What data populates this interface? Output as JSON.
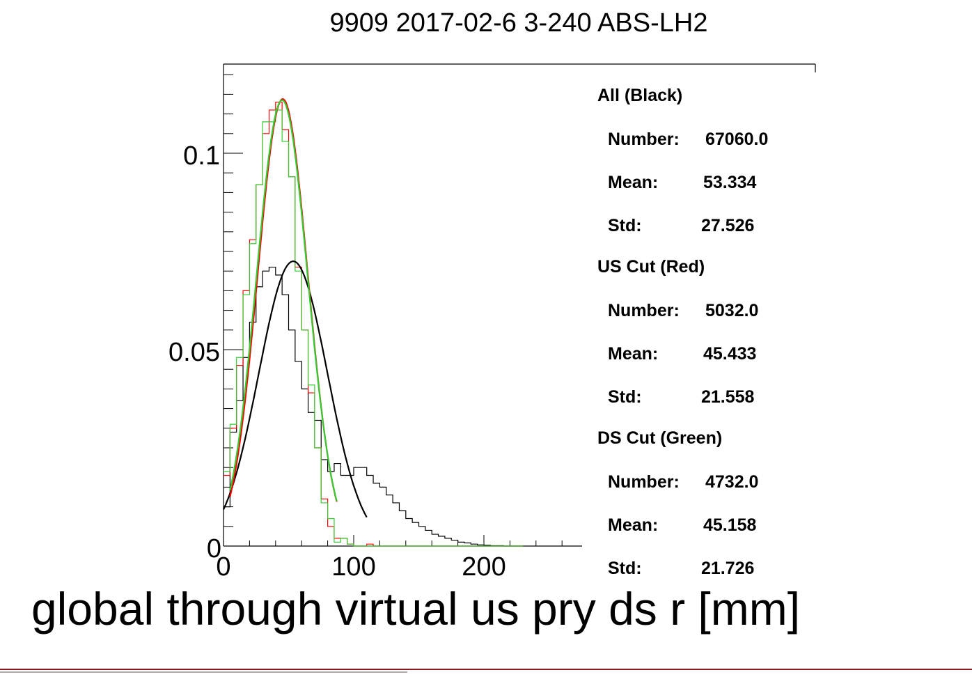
{
  "chart_data": {
    "type": "histogram",
    "title": "9909 2017-02-6 3-240 ABS-LH2",
    "xlabel": "global through virtual us pry ds r [mm]",
    "ylabel": "",
    "xlim": [
      0,
      284
    ],
    "ylim": [
      0,
      0.1225
    ],
    "x_ticks": [
      {
        "value": 0,
        "label": "0"
      },
      {
        "value": 100,
        "label": "100"
      },
      {
        "value": 200,
        "label": "200"
      }
    ],
    "y_ticks": [
      {
        "value": 0,
        "label": "0"
      },
      {
        "value": 0.05,
        "label": "0.05"
      },
      {
        "value": 0.1,
        "label": "0.1"
      }
    ],
    "grid": false,
    "legend_position": "right",
    "bin_width": 5,
    "series": [
      {
        "name": "All (Black)",
        "color": "#000000",
        "bin_edges_start": 0,
        "values": [
          0.01,
          0.029,
          0.037,
          0.048,
          0.057,
          0.066,
          0.07,
          0.071,
          0.069,
          0.064,
          0.055,
          0.047,
          0.04,
          0.034,
          0.032,
          0.022,
          0.019,
          0.021,
          0.018,
          0.018,
          0.02,
          0.02,
          0.018,
          0.016,
          0.015,
          0.013,
          0.011,
          0.009,
          0.007,
          0.006,
          0.005,
          0.004,
          0.003,
          0.0025,
          0.002,
          0.0015,
          0.001,
          0.0008,
          0.0005,
          0.0003,
          0.0002,
          0.0001,
          0.0001,
          0.0,
          0.0,
          0.0
        ],
        "fit": {
          "type": "gauss",
          "mean": 53.5,
          "sigma": 26.4,
          "amplitude": 0.0725,
          "range": [
            0,
            110
          ]
        },
        "stats": {
          "number": "67060.0",
          "mean": "53.334",
          "std": "27.526"
        }
      },
      {
        "name": "US Cut (Red)",
        "color": "#ff0000",
        "bin_edges_start": 0,
        "values": [
          0.018,
          0.03,
          0.046,
          0.065,
          0.078,
          0.092,
          0.105,
          0.111,
          0.113,
          0.106,
          0.094,
          0.071,
          0.055,
          0.039,
          0.025,
          0.012,
          0.005,
          0.002,
          0.002,
          0.0005,
          0.0,
          0.0,
          0.0005,
          0.0,
          0.0,
          0.0,
          0.0,
          0.0,
          0.0,
          0.0,
          0.0,
          0.0,
          0.0,
          0.0,
          0.0,
          0.0,
          0.0,
          0.0,
          0.0,
          0.0,
          0.0,
          0.0,
          0.0,
          0.0,
          0.0,
          0.0
        ],
        "fit": {
          "type": "gauss",
          "mean": 45.5,
          "sigma": 19.3,
          "amplitude": 0.1138,
          "range": [
            5,
            87
          ]
        },
        "stats": {
          "number": "5032.0",
          "mean": "45.433",
          "std": "21.558"
        }
      },
      {
        "name": "DS Cut (Green)",
        "color": "#33cc33",
        "bin_edges_start": 0,
        "values": [
          0.019,
          0.031,
          0.048,
          0.064,
          0.077,
          0.092,
          0.108,
          0.108,
          0.111,
          0.103,
          0.094,
          0.07,
          0.055,
          0.041,
          0.025,
          0.011,
          0.007,
          0.001,
          0.002,
          0.0005,
          0.0,
          0.0,
          0.0,
          0.0,
          0.0,
          0.0,
          0.0,
          0.0,
          0.0,
          0.0,
          0.0,
          0.0,
          0.0,
          0.0,
          0.0,
          0.0,
          0.0,
          0.0,
          0.0,
          0.0,
          0.0,
          0.0,
          0.0,
          0.0,
          0.0,
          0.0
        ],
        "fit": {
          "type": "gauss",
          "mean": 45.0,
          "sigma": 19.6,
          "amplitude": 0.1135,
          "range": [
            5,
            87
          ]
        },
        "stats": {
          "number": "4732.0",
          "mean": "45.158",
          "std": "21.726"
        }
      }
    ],
    "stats_labels": {
      "number": "Number:",
      "mean": "Mean:",
      "std": "Std:"
    }
  }
}
